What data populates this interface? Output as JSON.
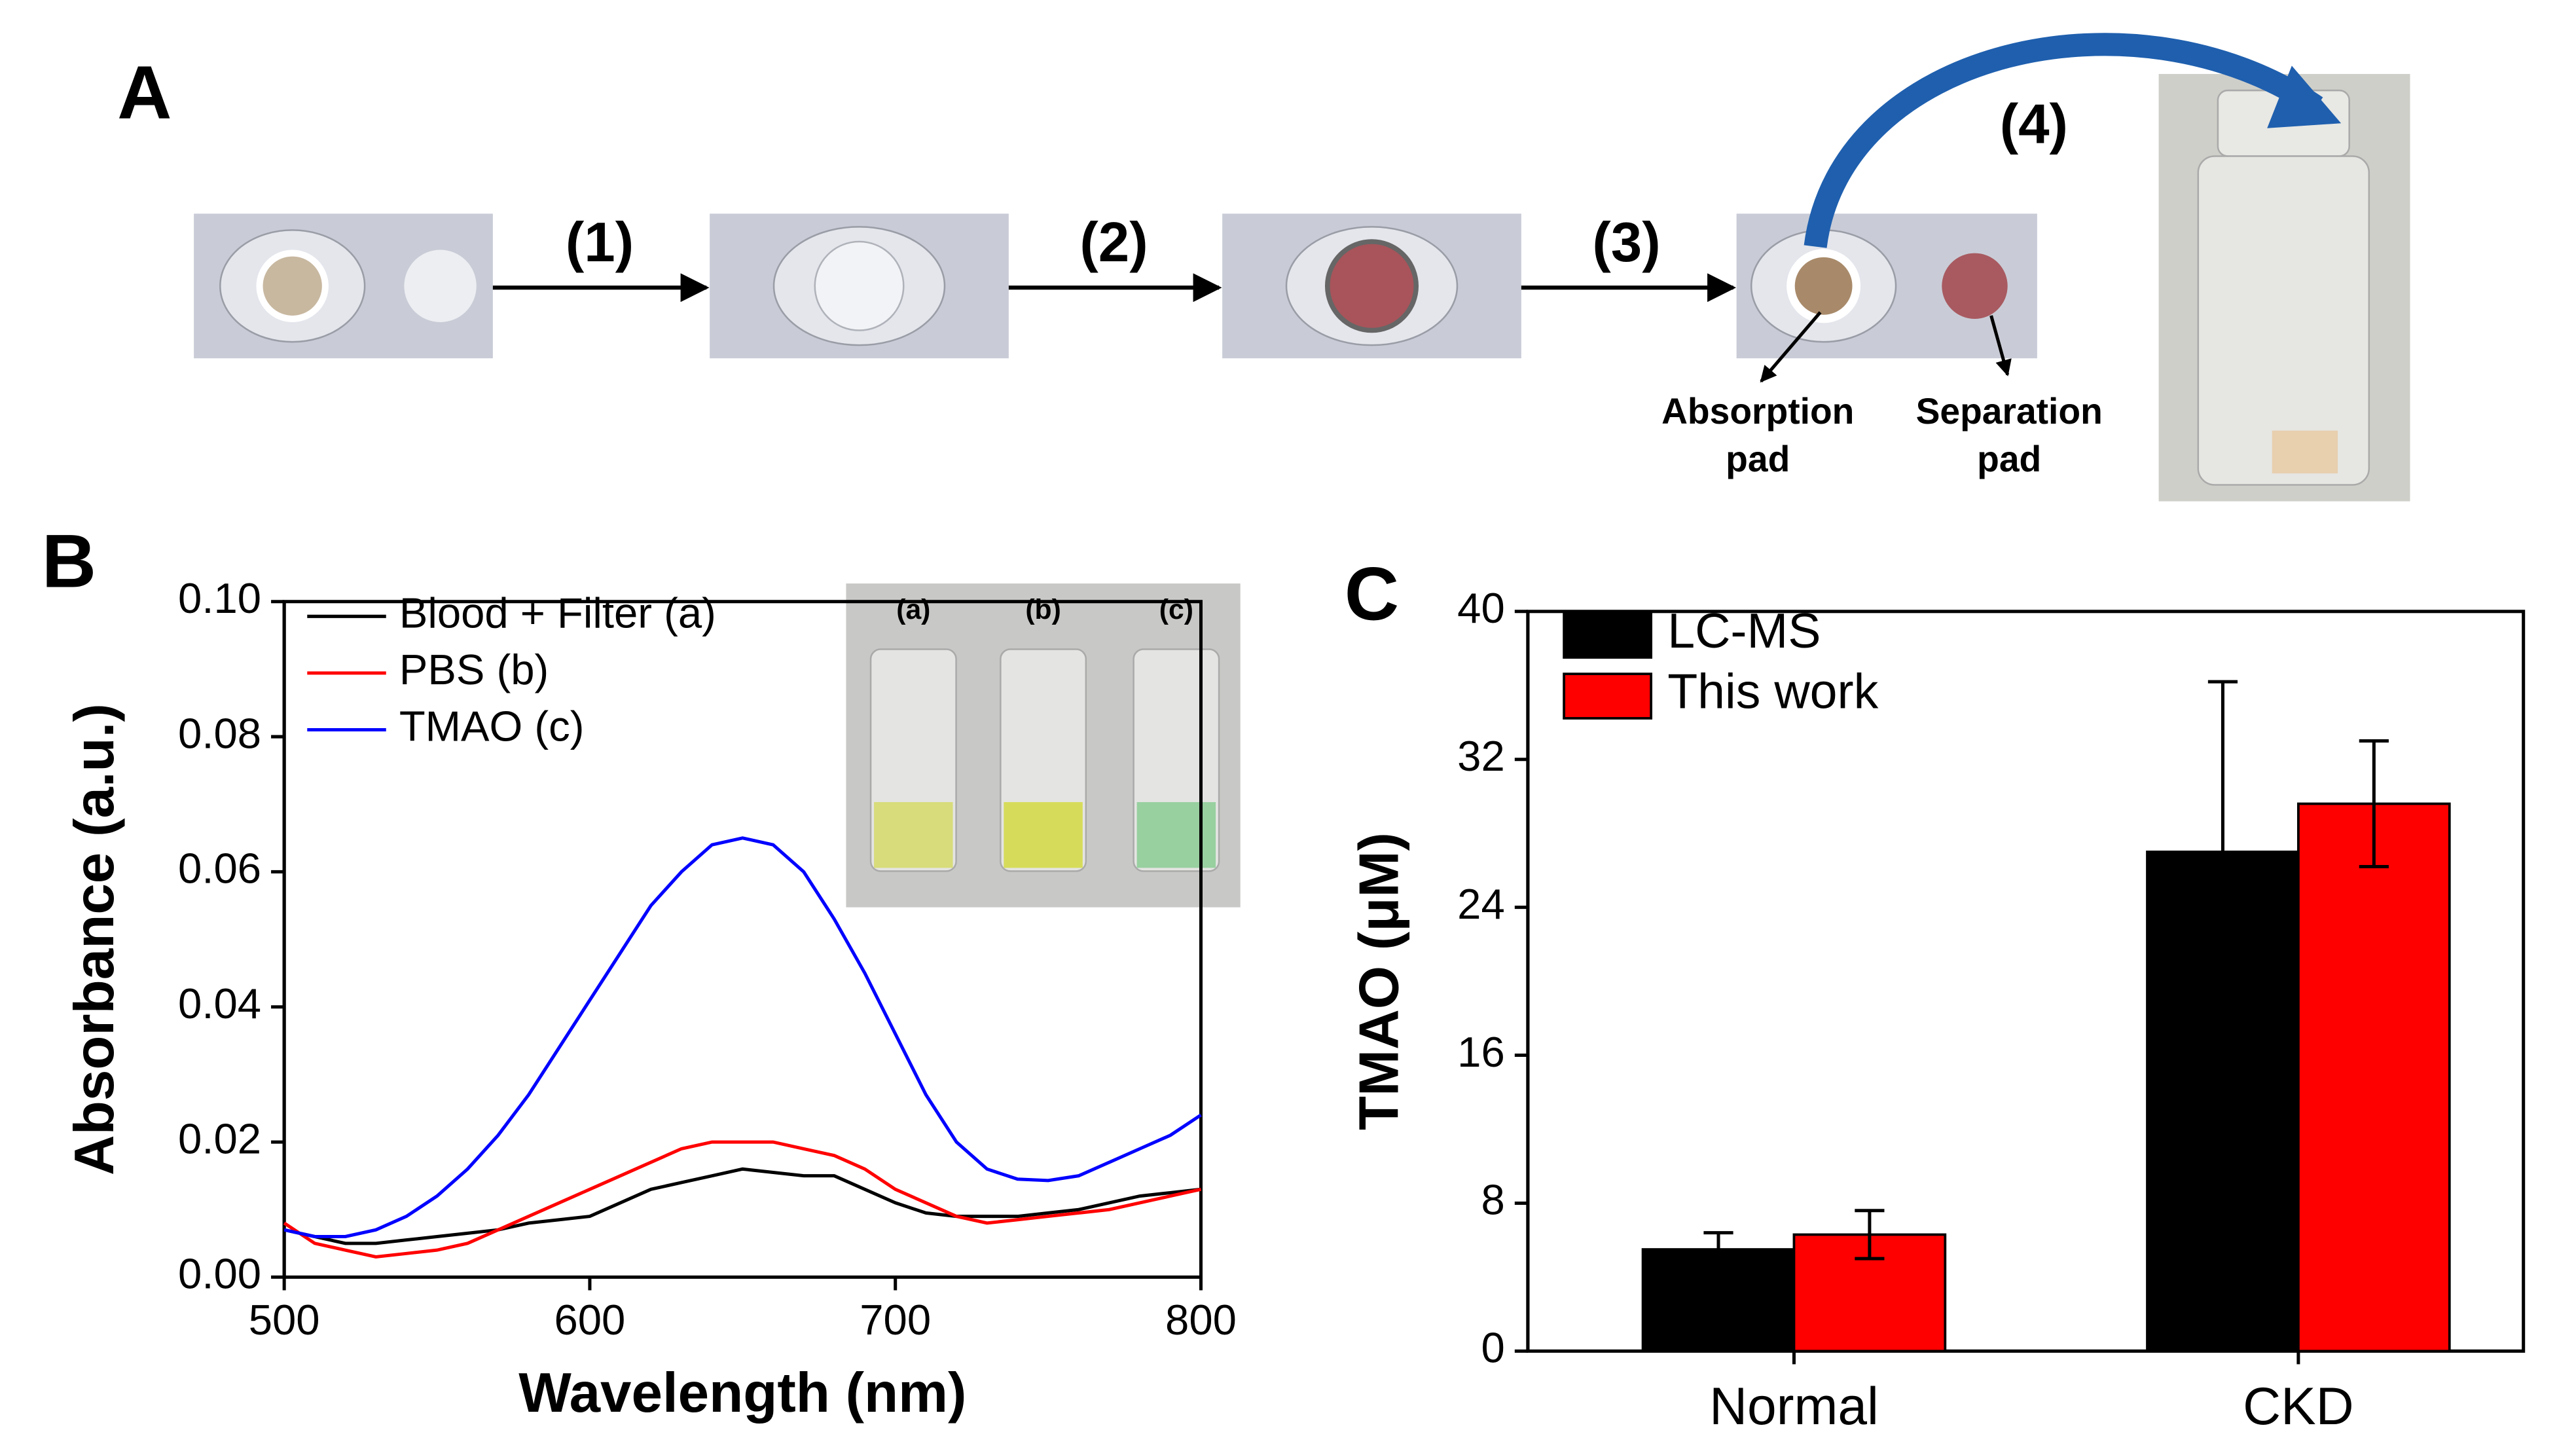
{
  "panel_a": {
    "label": "A",
    "steps": [
      "(1)",
      "(2)",
      "(3)",
      "(4)"
    ],
    "callouts": [
      [
        "Absorption",
        "pad"
      ],
      [
        "Separation",
        "pad"
      ]
    ]
  },
  "chart_data": [
    {
      "type": "line",
      "panel": "B",
      "xlabel": "Wavelength (nm)",
      "ylabel": "Absorbance (a.u.)",
      "inset_labels": [
        "(a)",
        "(b)",
        "(c)"
      ],
      "x": [
        500,
        510,
        520,
        530,
        540,
        550,
        560,
        570,
        580,
        590,
        600,
        610,
        620,
        630,
        640,
        650,
        660,
        670,
        680,
        690,
        700,
        710,
        720,
        730,
        740,
        750,
        760,
        770,
        780,
        790,
        800
      ],
      "series": [
        {
          "name": "Blood + Filter (a)",
          "color": "#000000",
          "values": [
            0.007,
            0.006,
            0.005,
            0.005,
            0.0055,
            0.006,
            0.0065,
            0.007,
            0.008,
            0.0085,
            0.009,
            0.011,
            0.013,
            0.014,
            0.015,
            0.016,
            0.0155,
            0.015,
            0.015,
            0.013,
            0.011,
            0.0095,
            0.009,
            0.009,
            0.009,
            0.0095,
            0.01,
            0.011,
            0.012,
            0.0125,
            0.013
          ]
        },
        {
          "name": "PBS (b)",
          "color": "#ff0000",
          "values": [
            0.008,
            0.005,
            0.004,
            0.003,
            0.0035,
            0.004,
            0.005,
            0.007,
            0.009,
            0.011,
            0.013,
            0.015,
            0.017,
            0.019,
            0.02,
            0.02,
            0.02,
            0.019,
            0.018,
            0.016,
            0.013,
            0.011,
            0.009,
            0.008,
            0.0085,
            0.009,
            0.0095,
            0.01,
            0.011,
            0.012,
            0.013
          ]
        },
        {
          "name": "TMAO (c)",
          "color": "#0000ff",
          "values": [
            0.007,
            0.006,
            0.006,
            0.007,
            0.009,
            0.012,
            0.016,
            0.021,
            0.027,
            0.034,
            0.041,
            0.048,
            0.055,
            0.06,
            0.064,
            0.065,
            0.064,
            0.06,
            0.053,
            0.045,
            0.036,
            0.027,
            0.02,
            0.016,
            0.0145,
            0.0143,
            0.015,
            0.017,
            0.019,
            0.021,
            0.024
          ]
        }
      ],
      "xlim": [
        500,
        800
      ],
      "xticks": [
        500,
        600,
        700,
        800
      ],
      "ylim": [
        0,
        0.1
      ],
      "yticks": [
        {
          "value": 0,
          "label": "0.00"
        },
        {
          "value": 0.02,
          "label": "0.02"
        },
        {
          "value": 0.04,
          "label": "0.04"
        },
        {
          "value": 0.06,
          "label": "0.06"
        },
        {
          "value": 0.08,
          "label": "0.08"
        },
        {
          "value": 0.1,
          "label": "0.10"
        }
      ],
      "legend": "top-left"
    },
    {
      "type": "bar",
      "panel": "C",
      "ylabel": "TMAO (μM)",
      "categories": [
        "Normal",
        "CKD"
      ],
      "series": [
        {
          "name": "LC-MS",
          "color": "#000000",
          "values": [
            5.5,
            27
          ],
          "errors": [
            0.9,
            9.2
          ]
        },
        {
          "name": "This work",
          "color": "#ff0000",
          "values": [
            6.3,
            29.6
          ],
          "errors": [
            1.3,
            3.4
          ]
        }
      ],
      "ylim": [
        0,
        40
      ],
      "yticks": [
        0,
        8,
        16,
        24,
        32,
        40
      ],
      "legend": "top-left"
    }
  ]
}
